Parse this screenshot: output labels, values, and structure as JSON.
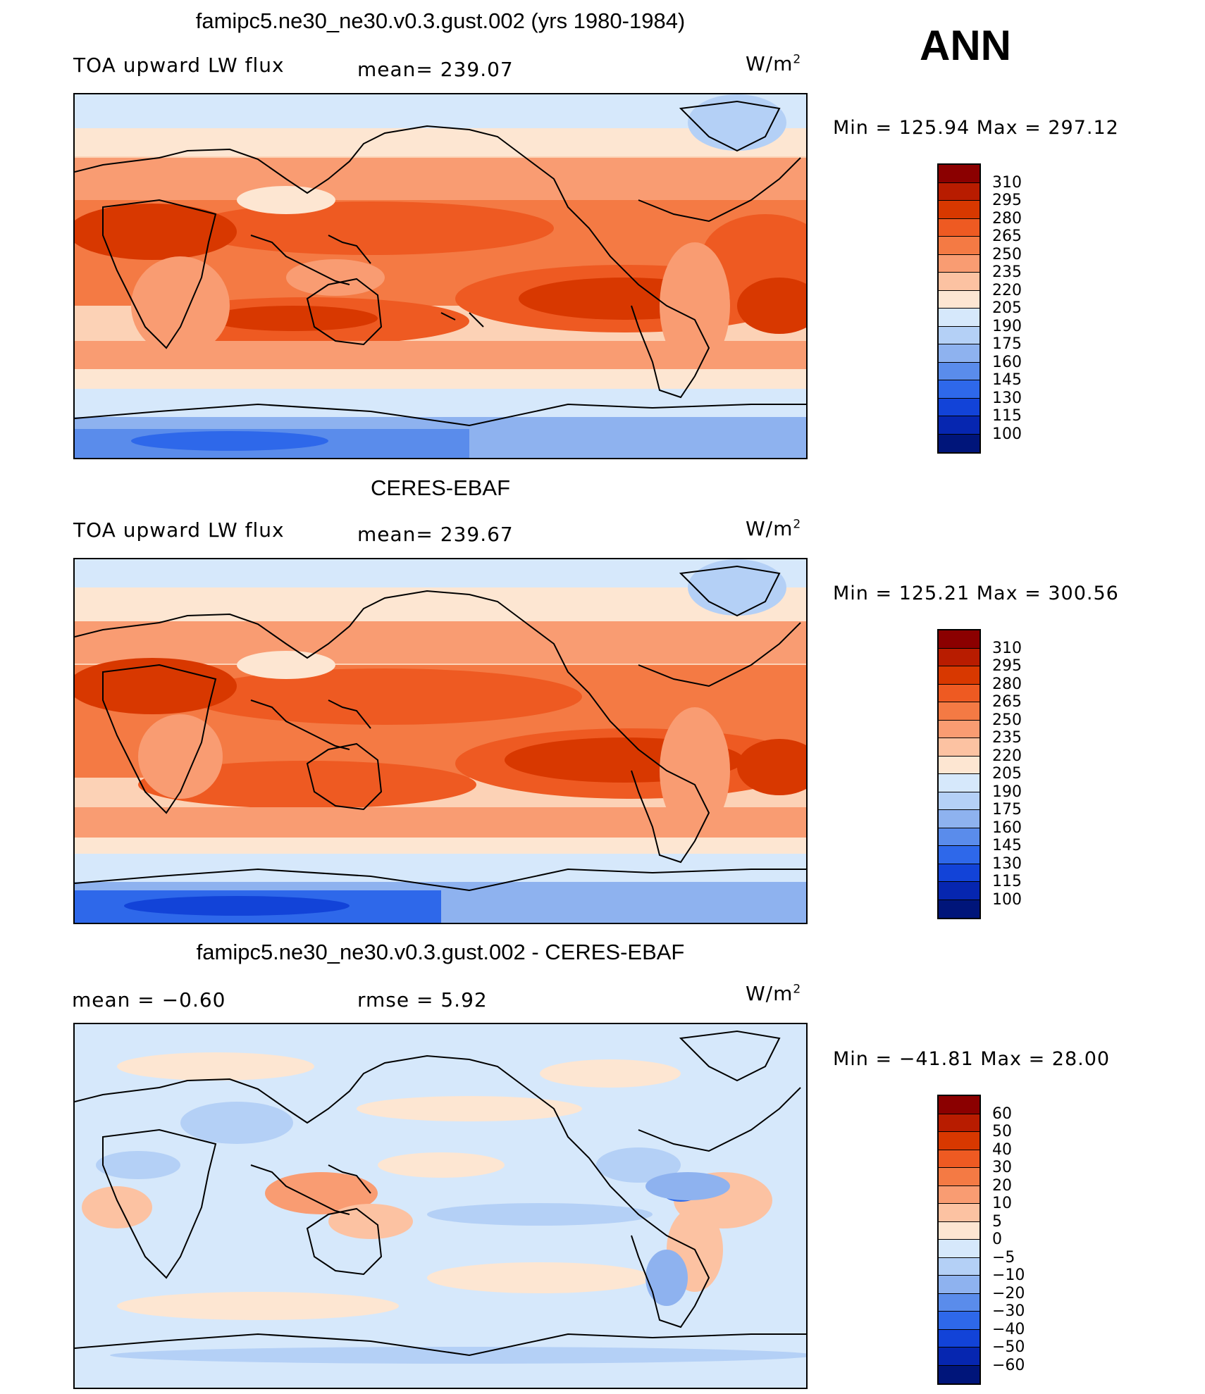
{
  "season": "ANN",
  "unit_main": "W/m",
  "unit_sup": "2",
  "panels": [
    {
      "title": "famipc5.ne30_ne30.v0.3.gust.002 (yrs 1980-1984)",
      "left_label": "TOA upward LW flux",
      "center_label": "mean= 239.07",
      "minmax": "Min  =  125.94  Max  =  297.12"
    },
    {
      "title": "CERES-EBAF",
      "left_label": "TOA upward LW flux",
      "center_label": "mean= 239.67",
      "minmax": "Min  =  125.21  Max  =  300.56"
    },
    {
      "title": "famipc5.ne30_ne30.v0.3.gust.002 - CERES-EBAF",
      "left_label": "mean  =    −0.60",
      "center_label": "rmse  =     5.92",
      "minmax": "Min  =  −41.81  Max  =    28.00"
    }
  ],
  "colorbars": [
    {
      "labels": [
        "310",
        "295",
        "280",
        "265",
        "250",
        "235",
        "220",
        "205",
        "190",
        "175",
        "160",
        "145",
        "130",
        "115",
        "100"
      ],
      "colors": [
        "#8b0000",
        "#b81c00",
        "#d83800",
        "#ee5a22",
        "#f47a44",
        "#f99c72",
        "#fcc2a2",
        "#fde6d2",
        "#d6e8fb",
        "#b4d0f6",
        "#8eb2ef",
        "#5a8ceb",
        "#2e68ea",
        "#1243d8",
        "#0626b0",
        "#00157a"
      ]
    },
    {
      "labels": [
        "310",
        "295",
        "280",
        "265",
        "250",
        "235",
        "220",
        "205",
        "190",
        "175",
        "160",
        "145",
        "130",
        "115",
        "100"
      ],
      "colors": [
        "#8b0000",
        "#b81c00",
        "#d83800",
        "#ee5a22",
        "#f47a44",
        "#f99c72",
        "#fcc2a2",
        "#fde6d2",
        "#d6e8fb",
        "#b4d0f6",
        "#8eb2ef",
        "#5a8ceb",
        "#2e68ea",
        "#1243d8",
        "#0626b0",
        "#00157a"
      ]
    },
    {
      "labels": [
        "60",
        "50",
        "40",
        "30",
        "20",
        "10",
        "5",
        "0",
        "−5",
        "−10",
        "−20",
        "−30",
        "−40",
        "−50",
        "−60"
      ],
      "colors": [
        "#8b0000",
        "#b81c00",
        "#d83800",
        "#ee5a22",
        "#f47a44",
        "#f99c72",
        "#fcc2a2",
        "#fde6d2",
        "#d6e8fb",
        "#b4d0f6",
        "#8eb2ef",
        "#5a8ceb",
        "#2e68ea",
        "#1243d8",
        "#0626b0",
        "#00157a"
      ]
    }
  ]
}
